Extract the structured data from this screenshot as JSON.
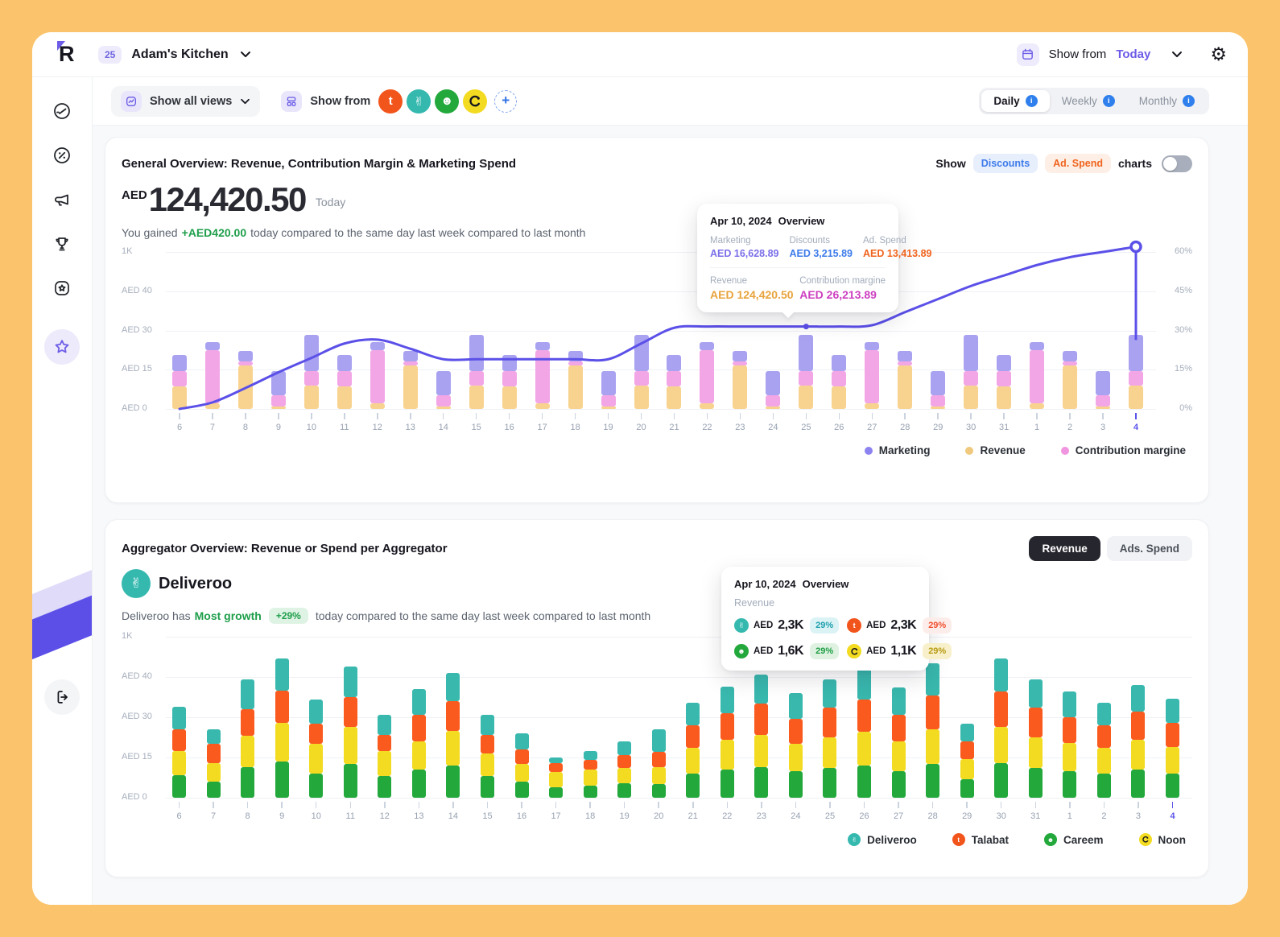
{
  "topbar": {
    "logo": "R",
    "badge": "25",
    "restaurant": "Adam's Kitchen",
    "show_from": "Show from",
    "range": "Today"
  },
  "toolbar": {
    "views": "Show all views",
    "show_from": "Show from",
    "tabs": [
      {
        "label": "Daily"
      },
      {
        "label": "Weekly"
      },
      {
        "label": "Monthly"
      }
    ]
  },
  "icons": {
    "deliveroo_glyph": "✌",
    "careem_glyph": "☻",
    "talabat_glyph": "t"
  },
  "card1": {
    "title": "General Overview: Revenue, Contribution Margin & Marketing Spend",
    "show": "Show",
    "pill_discounts": "Discounts",
    "pill_adspend": "Ad. Spend",
    "charts": "charts",
    "currency": "AED",
    "amount": "124,420.50",
    "period": "Today",
    "gain_pre": "You gained",
    "gain": "+AED420.00",
    "gain_post": "today compared to the same day last week compared to last month",
    "tooltip": {
      "date": "Apr 10, 2024",
      "title": "Overview",
      "cols": [
        {
          "label": "Marketing",
          "value": "AED 16,628.89",
          "color": "#7B6FE9"
        },
        {
          "label": "Discounts",
          "value": "AED 3,215.89",
          "color": "#3D7BEA"
        },
        {
          "label": "Ad. Spend",
          "value": "AED 13,413.89",
          "color": "#F0641E"
        }
      ],
      "rows": [
        {
          "label": "Revenue",
          "value": "AED 124,420.50",
          "color": "#E8A33D"
        },
        {
          "label": "Contribution margine",
          "value": "AED 26,213.89",
          "color": "#CC3FC0"
        }
      ]
    },
    "legend": [
      {
        "label": "Marketing",
        "color": "#8D83F0"
      },
      {
        "label": "Revenue",
        "color": "#F0C97E"
      },
      {
        "label": "Contribution margine",
        "color": "#F095E0"
      }
    ]
  },
  "card2": {
    "title": "Aggregator Overview: Revenue or Spend per Aggregator",
    "btn_revenue": "Revenue",
    "btn_adspend": "Ads. Spend",
    "aggregator": "Deliveroo",
    "gain_pre": "Deliveroo has",
    "gain_highlight": "Most growth",
    "gain_badge": "+29%",
    "gain_post": "today compared to the same day last week compared to last month",
    "tooltip": {
      "date": "Apr 10, 2024",
      "title": "Overview",
      "section": "Revenue",
      "items": [
        {
          "name": "Deliveroo",
          "prefix": "AED",
          "value": "2,3K",
          "pct": "29%"
        },
        {
          "name": "Talabat",
          "prefix": "AED",
          "value": "2,3K",
          "pct": "29%"
        },
        {
          "name": "Careem",
          "prefix": "AED",
          "value": "1,6K",
          "pct": "29%"
        },
        {
          "name": "Noon",
          "prefix": "AED",
          "value": "1,1K",
          "pct": "29%"
        }
      ]
    },
    "legend": [
      {
        "label": "Deliveroo"
      },
      {
        "label": "Talabat"
      },
      {
        "label": "Careem"
      },
      {
        "label": "Noon"
      }
    ]
  },
  "chart_data": [
    {
      "type": "bar",
      "subtype": "stacked-bars-with-line",
      "title": "General Overview: Revenue, Contribution Margin & Marketing Spend",
      "categories": [
        "6",
        "7",
        "8",
        "9",
        "10",
        "11",
        "12",
        "13",
        "14",
        "15",
        "16",
        "17",
        "18",
        "19",
        "20",
        "21",
        "22",
        "23",
        "24",
        "25",
        "26",
        "27",
        "28",
        "29",
        "30",
        "31",
        "1",
        "2",
        "3",
        "4"
      ],
      "ylabel": "AED",
      "left_axis": [
        "AED 0",
        "AED 15",
        "AED 30",
        "AED 40",
        "1K"
      ],
      "right_axis": [
        "0%",
        "15%",
        "30%",
        "45%",
        "60%"
      ],
      "highlight_category": "4",
      "marker_category": "25",
      "series": [
        {
          "name": "Revenue",
          "color": "#F8D38F",
          "values": [
            8.6,
            2.1,
            16.5,
            0.9,
            8.9,
            8.6,
            2.1,
            16.5,
            0.9,
            8.9,
            8.6,
            2.1,
            16.5,
            0.9,
            8.9,
            8.6,
            2.1,
            16.5,
            0.9,
            8.9,
            8.6,
            2.1,
            16.5,
            0.9,
            8.9,
            8.6,
            2.1,
            16.5,
            0.9,
            8.9
          ]
        },
        {
          "name": "Contribution margine",
          "color": "#F3A6E6",
          "values": [
            5.8,
            20.5,
            1.8,
            4.3,
            5.5,
            5.8,
            20.5,
            1.8,
            4.3,
            5.5,
            5.8,
            20.5,
            1.8,
            4.3,
            5.5,
            5.8,
            20.5,
            1.8,
            4.3,
            5.5,
            5.8,
            20.5,
            1.8,
            4.3,
            5.5,
            5.8,
            20.5,
            1.8,
            4.3,
            5.5
          ]
        },
        {
          "name": "Marketing",
          "color": "#A9A2F1",
          "values": [
            6.1,
            3.1,
            4,
            9.2,
            13.8,
            6.1,
            3.1,
            4,
            9.2,
            13.8,
            6.1,
            3.1,
            4,
            9.2,
            13.8,
            6.1,
            3.1,
            4,
            9.2,
            13.8,
            6.1,
            3.1,
            4,
            9.2,
            13.8,
            6.1,
            3.1,
            4,
            9.2,
            13.8
          ]
        }
      ],
      "line": {
        "name": "Trend (%)",
        "color": "#5B50E8",
        "axis": "right",
        "values": [
          0,
          2.5,
          8,
          14,
          19.5,
          25,
          26.5,
          23,
          19,
          19,
          19,
          19,
          19,
          19,
          25,
          31,
          31.5,
          31.5,
          31.5,
          31.5,
          31.5,
          32,
          37,
          42,
          47,
          51,
          55,
          58,
          60,
          62
        ]
      }
    },
    {
      "type": "bar",
      "subtype": "stacked-bars",
      "title": "Aggregator Overview: Revenue or Spend per Aggregator",
      "categories": [
        "6",
        "7",
        "8",
        "9",
        "10",
        "11",
        "12",
        "13",
        "14",
        "15",
        "16",
        "17",
        "18",
        "19",
        "20",
        "21",
        "22",
        "23",
        "24",
        "25",
        "26",
        "27",
        "28",
        "29",
        "30",
        "31",
        "1",
        "2",
        "3",
        "4"
      ],
      "ylabel": "AED",
      "left_axis": [
        "AED 0",
        "AED 15",
        "AED 30",
        "AED 40",
        "1K"
      ],
      "highlight_category": "4",
      "series": [
        {
          "name": "Careem",
          "color": "#23A83C",
          "values": [
            8.5,
            6,
            11.5,
            13.5,
            9,
            12.5,
            8,
            10.5,
            12,
            8,
            6,
            4,
            4.5,
            5.5,
            5,
            9,
            10.5,
            11.5,
            10,
            11,
            12,
            10,
            12.5,
            7,
            13,
            11,
            10,
            9,
            10.5,
            9
          ]
        },
        {
          "name": "Noon",
          "color": "#F2DB21",
          "values": [
            9,
            7,
            11.5,
            14.5,
            11,
            14,
            9.5,
            10.5,
            13,
            8.5,
            6.5,
            5.5,
            6,
            5.5,
            6.5,
            9.5,
            11,
            12,
            10,
            11.5,
            12.5,
            11,
            13,
            7.5,
            13.5,
            11.5,
            10.5,
            9.5,
            11,
            10
          ]
        },
        {
          "name": "Talabat",
          "color": "#FA5A1D",
          "values": [
            8,
            7,
            10,
            12,
            7.5,
            11,
            6,
            10,
            11,
            7,
            5.5,
            3.5,
            3.5,
            5,
            5.5,
            8.5,
            10,
            11.5,
            9.5,
            11,
            12,
            10,
            12.5,
            6.5,
            13,
            11,
            9.5,
            8.5,
            10.5,
            9
          ]
        },
        {
          "name": "Deliveroo",
          "color": "#39B8AE",
          "values": [
            8.5,
            5.5,
            11,
            12,
            9,
            11.5,
            7.5,
            9.5,
            10.5,
            7.5,
            6,
            2,
            3.5,
            5,
            8.5,
            8.5,
            10,
            11,
            9.5,
            10.5,
            11.5,
            10,
            12,
            6.5,
            12.5,
            10.5,
            9.5,
            8.5,
            10,
            9
          ]
        }
      ]
    }
  ]
}
